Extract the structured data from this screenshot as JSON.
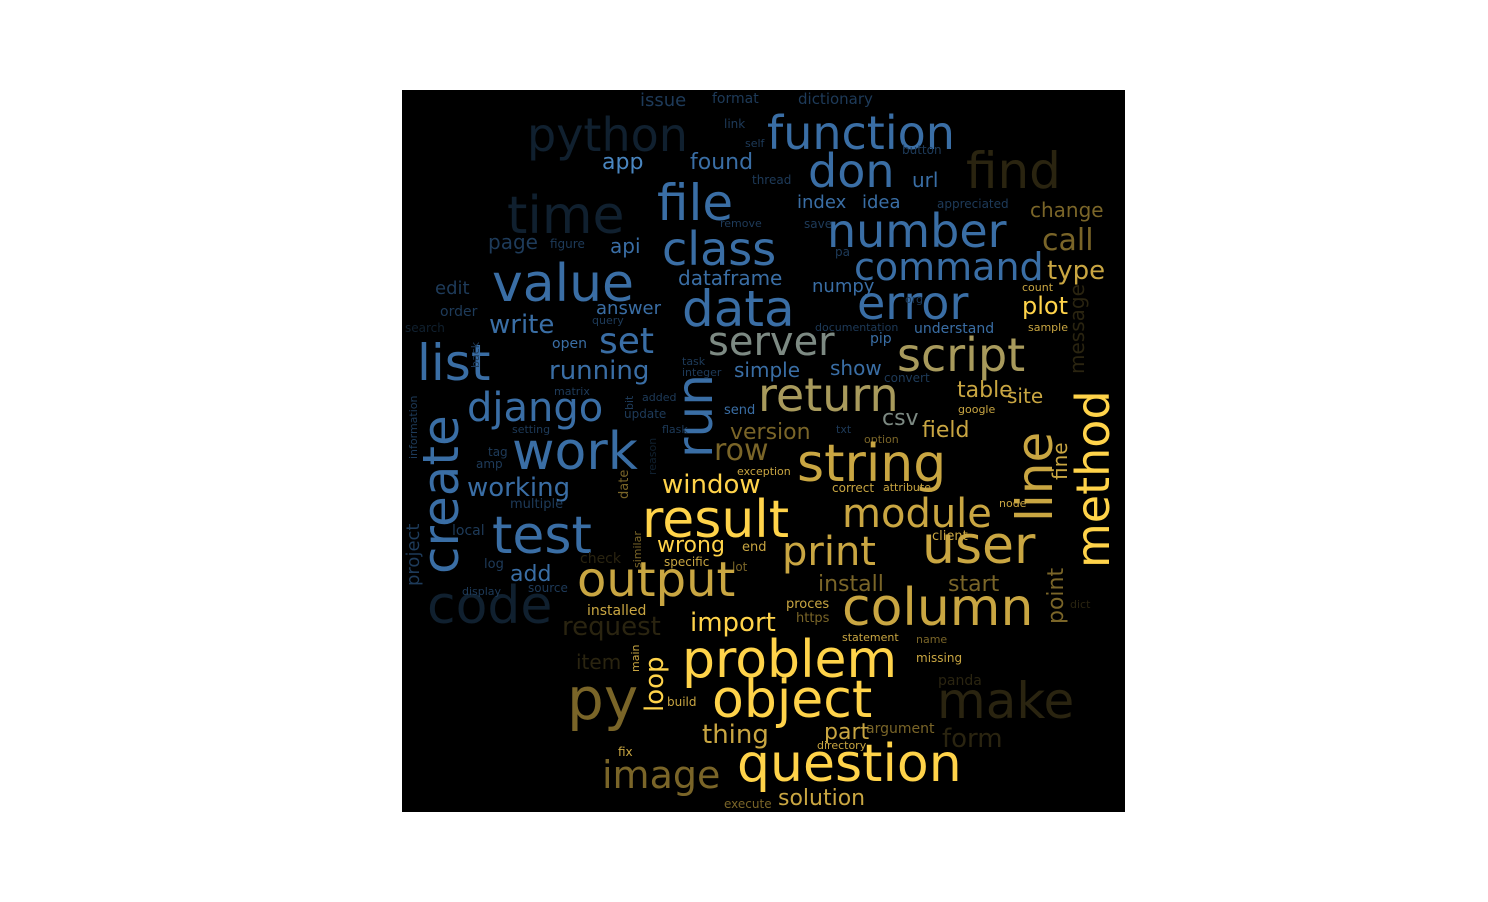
{
  "palette": {
    "background": "#000000",
    "blue": "#3a6ea5",
    "blue_light": "#4a86c0",
    "blue_dim": "#1e3b5a",
    "blue_faint": "#10202f",
    "gold": "#ffd34a",
    "gold_mid": "#c9a642",
    "gold_dim": "#7a6528",
    "gold_faint": "#2a2410",
    "gray": "#7d8a83",
    "khaki": "#a89a5c"
  },
  "words": [
    {
      "text": "python",
      "tone": "blue_faint"
    },
    {
      "text": "function",
      "tone": "blue"
    },
    {
      "text": "issue",
      "tone": "blue_dim"
    },
    {
      "text": "format",
      "tone": "blue_dim"
    },
    {
      "text": "dictionary",
      "tone": "blue_dim"
    },
    {
      "text": "link",
      "tone": "blue_dim"
    },
    {
      "text": "self",
      "tone": "blue_dim"
    },
    {
      "text": "button",
      "tone": "blue_dim"
    },
    {
      "text": "don",
      "tone": "blue"
    },
    {
      "text": "find",
      "tone": "gold_faint"
    },
    {
      "text": "app",
      "tone": "blue_light"
    },
    {
      "text": "found",
      "tone": "blue"
    },
    {
      "text": "url",
      "tone": "blue"
    },
    {
      "text": "thread",
      "tone": "blue_dim"
    },
    {
      "text": "time",
      "tone": "blue_faint"
    },
    {
      "text": "file",
      "tone": "blue"
    },
    {
      "text": "index",
      "tone": "blue"
    },
    {
      "text": "idea",
      "tone": "blue"
    },
    {
      "text": "appreciated",
      "tone": "blue_dim"
    },
    {
      "text": "change",
      "tone": "gold_dim"
    },
    {
      "text": "class",
      "tone": "blue"
    },
    {
      "text": "number",
      "tone": "blue"
    },
    {
      "text": "remove",
      "tone": "blue_dim"
    },
    {
      "text": "save",
      "tone": "blue_dim"
    },
    {
      "text": "page",
      "tone": "blue_dim"
    },
    {
      "text": "figure",
      "tone": "blue_dim"
    },
    {
      "text": "api",
      "tone": "blue"
    },
    {
      "text": "pa",
      "tone": "blue_dim"
    },
    {
      "text": "call",
      "tone": "gold_dim"
    },
    {
      "text": "value",
      "tone": "blue"
    },
    {
      "text": "command",
      "tone": "blue"
    },
    {
      "text": "dataframe",
      "tone": "blue"
    },
    {
      "text": "type",
      "tone": "gold_mid"
    },
    {
      "text": "edit",
      "tone": "blue_dim"
    },
    {
      "text": "numpy",
      "tone": "blue"
    },
    {
      "text": "count",
      "tone": "gold_mid"
    },
    {
      "text": "data",
      "tone": "blue"
    },
    {
      "text": "error",
      "tone": "blue"
    },
    {
      "text": "org",
      "tone": "blue_dim"
    },
    {
      "text": "plot",
      "tone": "gold"
    },
    {
      "text": "message",
      "tone": "gold_faint"
    },
    {
      "text": "order",
      "tone": "blue_dim"
    },
    {
      "text": "answer",
      "tone": "blue"
    },
    {
      "text": "write",
      "tone": "blue"
    },
    {
      "text": "query",
      "tone": "blue_dim"
    },
    {
      "text": "documentation",
      "tone": "blue_dim"
    },
    {
      "text": "understand",
      "tone": "blue"
    },
    {
      "text": "sample",
      "tone": "gold_mid"
    },
    {
      "text": "search",
      "tone": "blue_faint"
    },
    {
      "text": "list",
      "tone": "blue"
    },
    {
      "text": "set",
      "tone": "blue"
    },
    {
      "text": "server",
      "tone": "gray"
    },
    {
      "text": "pip",
      "tone": "blue"
    },
    {
      "text": "script",
      "tone": "khaki"
    },
    {
      "text": "back",
      "tone": "blue_dim"
    },
    {
      "text": "open",
      "tone": "blue"
    },
    {
      "text": "task",
      "tone": "blue_dim"
    },
    {
      "text": "running",
      "tone": "blue"
    },
    {
      "text": "integer",
      "tone": "blue_dim"
    },
    {
      "text": "simple",
      "tone": "blue"
    },
    {
      "text": "show",
      "tone": "blue"
    },
    {
      "text": "convert",
      "tone": "blue_dim"
    },
    {
      "text": "matrix",
      "tone": "blue_dim"
    },
    {
      "text": "table",
      "tone": "gold_mid"
    },
    {
      "text": "information",
      "tone": "blue_dim"
    },
    {
      "text": "django",
      "tone": "blue"
    },
    {
      "text": "added",
      "tone": "blue_dim"
    },
    {
      "text": "bit",
      "tone": "blue_dim"
    },
    {
      "text": "return",
      "tone": "khaki"
    },
    {
      "text": "site",
      "tone": "gold_mid"
    },
    {
      "text": "update",
      "tone": "blue_dim"
    },
    {
      "text": "send",
      "tone": "blue"
    },
    {
      "text": "google",
      "tone": "gold_mid"
    },
    {
      "text": "create",
      "tone": "blue"
    },
    {
      "text": "run",
      "tone": "blue"
    },
    {
      "text": "setting",
      "tone": "blue_dim"
    },
    {
      "text": "flask",
      "tone": "blue_dim"
    },
    {
      "text": "txt",
      "tone": "blue_dim"
    },
    {
      "text": "version",
      "tone": "gold_dim"
    },
    {
      "text": "field",
      "tone": "gold_mid"
    },
    {
      "text": "option",
      "tone": "gold_dim"
    },
    {
      "text": "csv",
      "tone": "gray"
    },
    {
      "text": "line",
      "tone": "gold_mid"
    },
    {
      "text": "method",
      "tone": "gold"
    },
    {
      "text": "work",
      "tone": "blue"
    },
    {
      "text": "tag",
      "tone": "blue_dim"
    },
    {
      "text": "reason",
      "tone": "blue_faint"
    },
    {
      "text": "row",
      "tone": "gold_dim"
    },
    {
      "text": "string",
      "tone": "gold_mid"
    },
    {
      "text": "fine",
      "tone": "gold_mid"
    },
    {
      "text": "amp",
      "tone": "blue_dim"
    },
    {
      "text": "exception",
      "tone": "gold_mid"
    },
    {
      "text": "working",
      "tone": "blue"
    },
    {
      "text": "window",
      "tone": "gold"
    },
    {
      "text": "correct",
      "tone": "gold_mid"
    },
    {
      "text": "attribute",
      "tone": "gold_mid"
    },
    {
      "text": "multiple",
      "tone": "blue_dim"
    },
    {
      "text": "date",
      "tone": "gold_dim"
    },
    {
      "text": "node",
      "tone": "gold_mid"
    },
    {
      "text": "test",
      "tone": "blue"
    },
    {
      "text": "result",
      "tone": "gold"
    },
    {
      "text": "module",
      "tone": "gold_mid"
    },
    {
      "text": "project",
      "tone": "blue_dim"
    },
    {
      "text": "local",
      "tone": "blue_dim"
    },
    {
      "text": "client",
      "tone": "gold_mid"
    },
    {
      "text": "similar",
      "tone": "gold_dim"
    },
    {
      "text": "wrong",
      "tone": "gold"
    },
    {
      "text": "end",
      "tone": "gold_mid"
    },
    {
      "text": "user",
      "tone": "gold_mid"
    },
    {
      "text": "check",
      "tone": "gold_faint"
    },
    {
      "text": "print",
      "tone": "gold_mid"
    },
    {
      "text": "log",
      "tone": "blue_dim"
    },
    {
      "text": "specific",
      "tone": "gold_mid"
    },
    {
      "text": "lot",
      "tone": "gold_dim"
    },
    {
      "text": "add",
      "tone": "blue"
    },
    {
      "text": "code",
      "tone": "blue_faint"
    },
    {
      "text": "output",
      "tone": "gold_mid"
    },
    {
      "text": "install",
      "tone": "gold_dim"
    },
    {
      "text": "start",
      "tone": "gold_dim"
    },
    {
      "text": "display",
      "tone": "blue_dim"
    },
    {
      "text": "source",
      "tone": "blue_dim"
    },
    {
      "text": "point",
      "tone": "gold_dim"
    },
    {
      "text": "proces",
      "tone": "gold_mid"
    },
    {
      "text": "dict",
      "tone": "gold_faint"
    },
    {
      "text": "column",
      "tone": "gold_mid"
    },
    {
      "text": "installed",
      "tone": "gold_mid"
    },
    {
      "text": "https",
      "tone": "gold_dim"
    },
    {
      "text": "request",
      "tone": "gold_faint"
    },
    {
      "text": "import",
      "tone": "gold"
    },
    {
      "text": "statement",
      "tone": "gold_mid"
    },
    {
      "text": "name",
      "tone": "gold_dim"
    },
    {
      "text": "problem",
      "tone": "gold"
    },
    {
      "text": "missing",
      "tone": "gold_mid"
    },
    {
      "text": "item",
      "tone": "gold_faint"
    },
    {
      "text": "loop",
      "tone": "gold"
    },
    {
      "text": "main",
      "tone": "gold_mid"
    },
    {
      "text": "panda",
      "tone": "gold_faint"
    },
    {
      "text": "py",
      "tone": "gold_dim"
    },
    {
      "text": "object",
      "tone": "gold"
    },
    {
      "text": "make",
      "tone": "gold_faint"
    },
    {
      "text": "build",
      "tone": "gold_mid"
    },
    {
      "text": "thing",
      "tone": "gold_mid"
    },
    {
      "text": "part",
      "tone": "gold_mid"
    },
    {
      "text": "argument",
      "tone": "gold_dim"
    },
    {
      "text": "form",
      "tone": "gold_faint"
    },
    {
      "text": "directory",
      "tone": "gold_mid"
    },
    {
      "text": "fix",
      "tone": "gold_mid"
    },
    {
      "text": "image",
      "tone": "gold_dim"
    },
    {
      "text": "question",
      "tone": "gold"
    },
    {
      "text": "execute",
      "tone": "gold_dim"
    },
    {
      "text": "solution",
      "tone": "gold_mid"
    }
  ]
}
